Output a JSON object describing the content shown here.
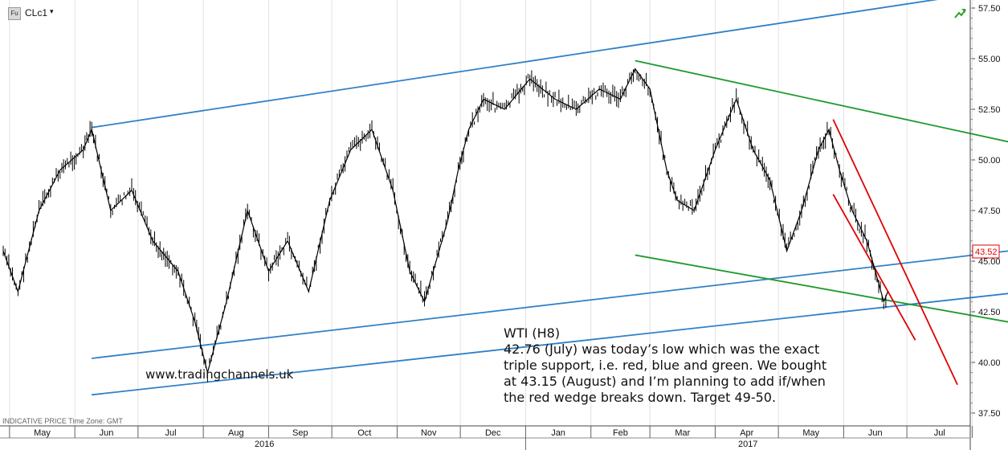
{
  "header": {
    "symbol_box": "Fu",
    "symbol": "CLc1",
    "caret": "▾",
    "status_icon": "trend-up-arrow-icon"
  },
  "footer": {
    "note": "INDICATIVE PRICE  Time Zone: GMT"
  },
  "annotation": {
    "title": "WTI (H8)",
    "body": "42.76 (July) was today’s low which was the exact\ntriple support, i.e. red, blue and green. We bought\nat 43.15 (August) and I’m planning to add if/when\nthe red wedge breaks down. Target 49-50."
  },
  "watermark": "www.tradingchannels.uk",
  "colors": {
    "price": "#000000",
    "blue_channel": "#2f80c8",
    "green_channel": "#1e9a2e",
    "red_wedge": "#e00000",
    "price_tag": "#e60000"
  },
  "chart_data": {
    "type": "line",
    "title": "",
    "xlabel": "",
    "ylabel": "",
    "ylim": [
      35.0,
      58.0
    ],
    "y_ticks": [
      "57.50",
      "55.00",
      "52.50",
      "50.00",
      "47.50",
      "45.00",
      "42.50",
      "40.00",
      "37.50"
    ],
    "x_month_labels": [
      "May",
      "Jun",
      "Jul",
      "Aug",
      "Sep",
      "Oct",
      "Nov",
      "Dec",
      "Jan",
      "Feb",
      "Mar",
      "Apr",
      "May",
      "Jun",
      "Jul"
    ],
    "x_year_labels": [
      "2016",
      "2017"
    ],
    "last_price": "43.52",
    "series": [
      {
        "values": [
          {
            "x": "2016-04-28",
            "y": 45.5
          },
          {
            "x": "2016-05-05",
            "y": 43.5
          },
          {
            "x": "2016-05-15",
            "y": 47.5
          },
          {
            "x": "2016-05-25",
            "y": 49.5
          },
          {
            "x": "2016-06-05",
            "y": 50.5
          },
          {
            "x": "2016-06-09",
            "y": 51.5
          },
          {
            "x": "2016-06-18",
            "y": 47.5
          },
          {
            "x": "2016-06-28",
            "y": 48.5
          },
          {
            "x": "2016-07-08",
            "y": 46.0
          },
          {
            "x": "2016-07-20",
            "y": 44.5
          },
          {
            "x": "2016-07-28",
            "y": 42.0
          },
          {
            "x": "2016-08-03",
            "y": 39.5
          },
          {
            "x": "2016-08-12",
            "y": 43.0
          },
          {
            "x": "2016-08-22",
            "y": 47.5
          },
          {
            "x": "2016-09-01",
            "y": 44.5
          },
          {
            "x": "2016-09-10",
            "y": 46.0
          },
          {
            "x": "2016-09-20",
            "y": 43.5
          },
          {
            "x": "2016-09-30",
            "y": 48.0
          },
          {
            "x": "2016-10-10",
            "y": 50.5
          },
          {
            "x": "2016-10-20",
            "y": 51.5
          },
          {
            "x": "2016-10-30",
            "y": 48.5
          },
          {
            "x": "2016-11-07",
            "y": 44.5
          },
          {
            "x": "2016-11-14",
            "y": 43.0
          },
          {
            "x": "2016-11-25",
            "y": 47.0
          },
          {
            "x": "2016-11-30",
            "y": 49.5
          },
          {
            "x": "2016-12-05",
            "y": 51.5
          },
          {
            "x": "2016-12-12",
            "y": 53.0
          },
          {
            "x": "2016-12-22",
            "y": 52.5
          },
          {
            "x": "2017-01-03",
            "y": 54.0
          },
          {
            "x": "2017-01-15",
            "y": 53.0
          },
          {
            "x": "2017-01-25",
            "y": 52.5
          },
          {
            "x": "2017-02-05",
            "y": 53.5
          },
          {
            "x": "2017-02-15",
            "y": 53.0
          },
          {
            "x": "2017-02-22",
            "y": 54.5
          },
          {
            "x": "2017-03-01",
            "y": 53.5
          },
          {
            "x": "2017-03-09",
            "y": 49.5
          },
          {
            "x": "2017-03-14",
            "y": 48.0
          },
          {
            "x": "2017-03-22",
            "y": 47.5
          },
          {
            "x": "2017-04-01",
            "y": 50.5
          },
          {
            "x": "2017-04-11",
            "y": 53.0
          },
          {
            "x": "2017-04-19",
            "y": 50.5
          },
          {
            "x": "2017-04-27",
            "y": 49.0
          },
          {
            "x": "2017-05-05",
            "y": 45.5
          },
          {
            "x": "2017-05-12",
            "y": 47.5
          },
          {
            "x": "2017-05-20",
            "y": 50.5
          },
          {
            "x": "2017-05-25",
            "y": 51.5
          },
          {
            "x": "2017-05-30",
            "y": 49.5
          },
          {
            "x": "2017-06-05",
            "y": 47.5
          },
          {
            "x": "2017-06-12",
            "y": 46.0
          },
          {
            "x": "2017-06-16",
            "y": 44.5
          },
          {
            "x": "2017-06-20",
            "y": 43.0
          },
          {
            "x": "2017-06-22",
            "y": 43.5
          }
        ]
      }
    ],
    "trend_lines": [
      {
        "color": "blue",
        "from": {
          "x": "2016-06-09",
          "y": 51.6
        },
        "to": {
          "x": "2017-07-20",
          "y": 58.0
        }
      },
      {
        "color": "blue",
        "from": {
          "x": "2016-06-09",
          "y": 40.2
        },
        "to": {
          "x": "2017-08-18",
          "y": 45.5
        }
      },
      {
        "color": "blue",
        "from": {
          "x": "2016-06-09",
          "y": 38.4
        },
        "to": {
          "x": "2017-08-18",
          "y": 43.4
        }
      },
      {
        "color": "green",
        "from": {
          "x": "2017-02-22",
          "y": 54.9
        },
        "to": {
          "x": "2017-08-18",
          "y": 50.9
        }
      },
      {
        "color": "green",
        "from": {
          "x": "2017-02-22",
          "y": 45.3
        },
        "to": {
          "x": "2017-08-18",
          "y": 42.0
        }
      },
      {
        "color": "red",
        "from": {
          "x": "2017-05-27",
          "y": 52.0
        },
        "to": {
          "x": "2017-07-25",
          "y": 38.9
        }
      },
      {
        "color": "red",
        "from": {
          "x": "2017-05-27",
          "y": 48.3
        },
        "to": {
          "x": "2017-07-05",
          "y": 41.1
        }
      }
    ]
  }
}
